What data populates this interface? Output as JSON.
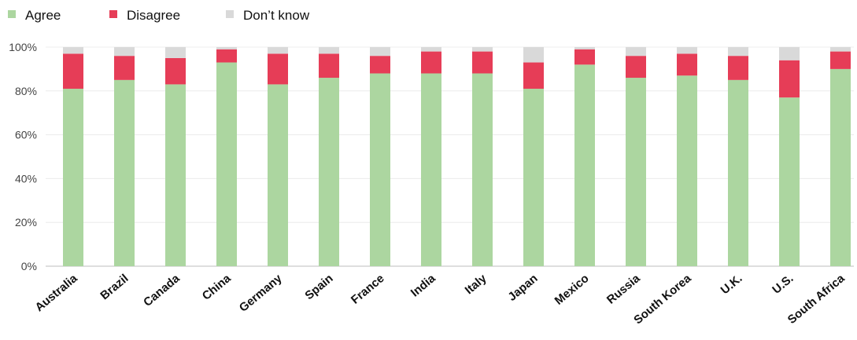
{
  "chart_data": {
    "type": "bar",
    "stacked": true,
    "categories": [
      "Australia",
      "Brazil",
      "Canada",
      "China",
      "Germany",
      "Spain",
      "France",
      "India",
      "Italy",
      "Japan",
      "Mexico",
      "Russia",
      "South Korea",
      "U.K.",
      "U.S.",
      "South Africa"
    ],
    "series": [
      {
        "name": "Agree",
        "color": "#acd6a0",
        "values": [
          81,
          85,
          83,
          93,
          83,
          86,
          88,
          88,
          88,
          81,
          92,
          86,
          87,
          85,
          77,
          90
        ]
      },
      {
        "name": "Disagree",
        "color": "#e63d57",
        "values": [
          16,
          11,
          12,
          6,
          14,
          11,
          8,
          10,
          10,
          12,
          7,
          10,
          10,
          11,
          17,
          8
        ]
      },
      {
        "name": "Don’t know",
        "color": "#d9d9d9",
        "values": [
          3,
          4,
          5,
          1,
          3,
          3,
          4,
          2,
          2,
          7,
          1,
          4,
          3,
          4,
          6,
          2
        ]
      }
    ],
    "yticks": [
      "0%",
      "20%",
      "40%",
      "60%",
      "80%",
      "100%"
    ],
    "ylim": [
      0,
      100
    ],
    "grid": true,
    "legend_position": "top-left"
  }
}
